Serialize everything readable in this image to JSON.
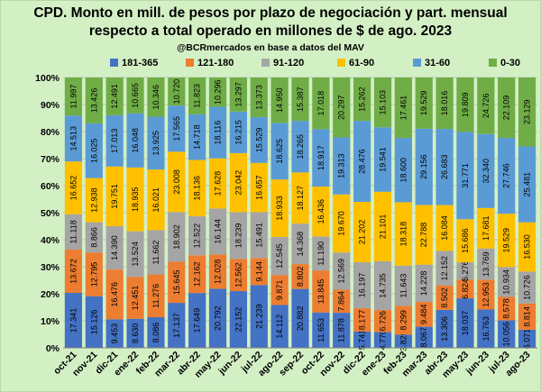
{
  "title": "CPD. Monto en mill. de pesos por plazo de negociación y part. mensual",
  "subtitle": "respecto a total operado en millones de $ de ago. 2023",
  "source": "@BCRmercados en base a datos del MAV",
  "chart_data": {
    "type": "bar",
    "stacked": "percent",
    "categories": [
      "oct-21",
      "nov-21",
      "dic-21",
      "ene-22",
      "feb-22",
      "mar-22",
      "abr-22",
      "may-22",
      "jun-22",
      "jul-22",
      "ago-22",
      "sep-22",
      "oct-22",
      "nov-22",
      "dic-22",
      "ene-23",
      "feb-23",
      "mar-23",
      "abr-23",
      "may-23",
      "jun-23",
      "jul-23",
      "ago-23"
    ],
    "y_ticks": [
      "0%",
      "10%",
      "20%",
      "30%",
      "40%",
      "50%",
      "60%",
      "70%",
      "80%",
      "90%",
      "100%"
    ],
    "ylim": [
      0,
      100
    ],
    "legend_position": "top",
    "grid": true,
    "series": [
      {
        "name": "181-365",
        "color": "#4472c4",
        "values": [
          17341,
          15126,
          9453,
          8630,
          8086,
          17137,
          17649,
          20792,
          22152,
          21239,
          14112,
          20882,
          11653,
          11878,
          5741,
          4770,
          3829,
          8067,
          13306,
          18037,
          16763,
          10056,
          6071
        ],
        "labels": [
          "17.341",
          "15.126",
          "9.453",
          "8.630",
          "8.086",
          "17.137",
          "17.649",
          "20.792",
          "22.152",
          "21.239",
          "14.112",
          "20.882",
          "11.653",
          "11.878",
          "5.741",
          "4.770",
          "3.829",
          "8.067",
          "13.306",
          "18.037",
          "16.763",
          "10.056",
          "6.071"
        ]
      },
      {
        "name": "121-180",
        "color": "#ed7d31",
        "values": [
          13672,
          12795,
          16476,
          12451,
          11276,
          15645,
          12162,
          12028,
          12562,
          9144,
          9871,
          8802,
          13845,
          7864,
          8177,
          6726,
          8299,
          9484,
          8502,
          6824,
          12953,
          8578,
          8814
        ],
        "labels": [
          "13.672",
          "12.795",
          "16.476",
          "12.451",
          "11.276",
          "15.645",
          "12.162",
          "12.028",
          "12.562",
          "9.144",
          "9.871",
          "8.802",
          "13.845",
          "7.864",
          "8.177",
          "6.726",
          "8.299",
          "9.484",
          "8.502",
          "6.824",
          "12.953",
          "8.578",
          "8.814"
        ]
      },
      {
        "name": "91-120",
        "color": "#a5a5a5",
        "values": [
          11118,
          8866,
          14390,
          13524,
          11662,
          18902,
          12522,
          16144,
          18239,
          15491,
          12545,
          14368,
          11190,
          12569,
          16197,
          14735,
          11643,
          14228,
          12152,
          6276,
          13769,
          10934,
          10726
        ],
        "labels": [
          "11.118",
          "8.866",
          "14.390",
          "13.524",
          "11.662",
          "18.902",
          "12.522",
          "16.144",
          "18.239",
          "15.491",
          "12.545",
          "14.368",
          "11.190",
          "12.569",
          "16.197",
          "14.735",
          "11.643",
          "14.228",
          "12.152",
          "6.276",
          "13.769",
          "10.934",
          "10.726"
        ]
      },
      {
        "name": "61-90",
        "color": "#ffc000",
        "values": [
          16652,
          12938,
          19751,
          18935,
          16021,
          23008,
          18136,
          17628,
          23042,
          16657,
          18933,
          18127,
          16436,
          19670,
          21202,
          21101,
          18318,
          22788,
          16084,
          15686,
          17681,
          19529,
          16530
        ],
        "labels": [
          "16.652",
          "12.938",
          "19.751",
          "18.935",
          "16.021",
          "23.008",
          "18.136",
          "17.628",
          "23.042",
          "16.657",
          "18.933",
          "18.127",
          "16.436",
          "19.670",
          "21.202",
          "21.101",
          "18.318",
          "22.788",
          "16.084",
          "15.686",
          "17.681",
          "19.529",
          "16.530"
        ]
      },
      {
        "name": "31-60",
        "color": "#5b9bd5",
        "values": [
          14513,
          16025,
          17013,
          16048,
          13925,
          17565,
          14718,
          18116,
          16215,
          15529,
          18625,
          18265,
          18917,
          19313,
          28476,
          19541,
          18600,
          29156,
          26683,
          31771,
          32340,
          27746,
          25481
        ],
        "labels": [
          "14.513",
          "16.025",
          "17.013",
          "16.048",
          "13.925",
          "17.565",
          "14.718",
          "18.116",
          "16.215",
          "15.529",
          "18.625",
          "18.265",
          "18.917",
          "19.313",
          "28.476",
          "19.541",
          "18.600",
          "29.156",
          "26.683",
          "31.771",
          "32.340",
          "27.746",
          "25.481"
        ]
      },
      {
        "name": "0-30",
        "color": "#70ad47",
        "values": [
          11997,
          13426,
          12491,
          10665,
          10346,
          10720,
          11823,
          10296,
          13297,
          13373,
          14950,
          15387,
          17018,
          20297,
          15262,
          15103,
          17461,
          19529,
          18016,
          19809,
          24726,
          22109,
          23129
        ],
        "labels": [
          "11.997",
          "13.426",
          "12.491",
          "10.665",
          "10.346",
          "10.720",
          "11.823",
          "10.296",
          "13.297",
          "13.373",
          "14.950",
          "15.387",
          "17.018",
          "20.297",
          "15.262",
          "15.103",
          "17.461",
          "19.529",
          "18.016",
          "19.809",
          "24.726",
          "22.109",
          "23.129"
        ]
      }
    ]
  }
}
